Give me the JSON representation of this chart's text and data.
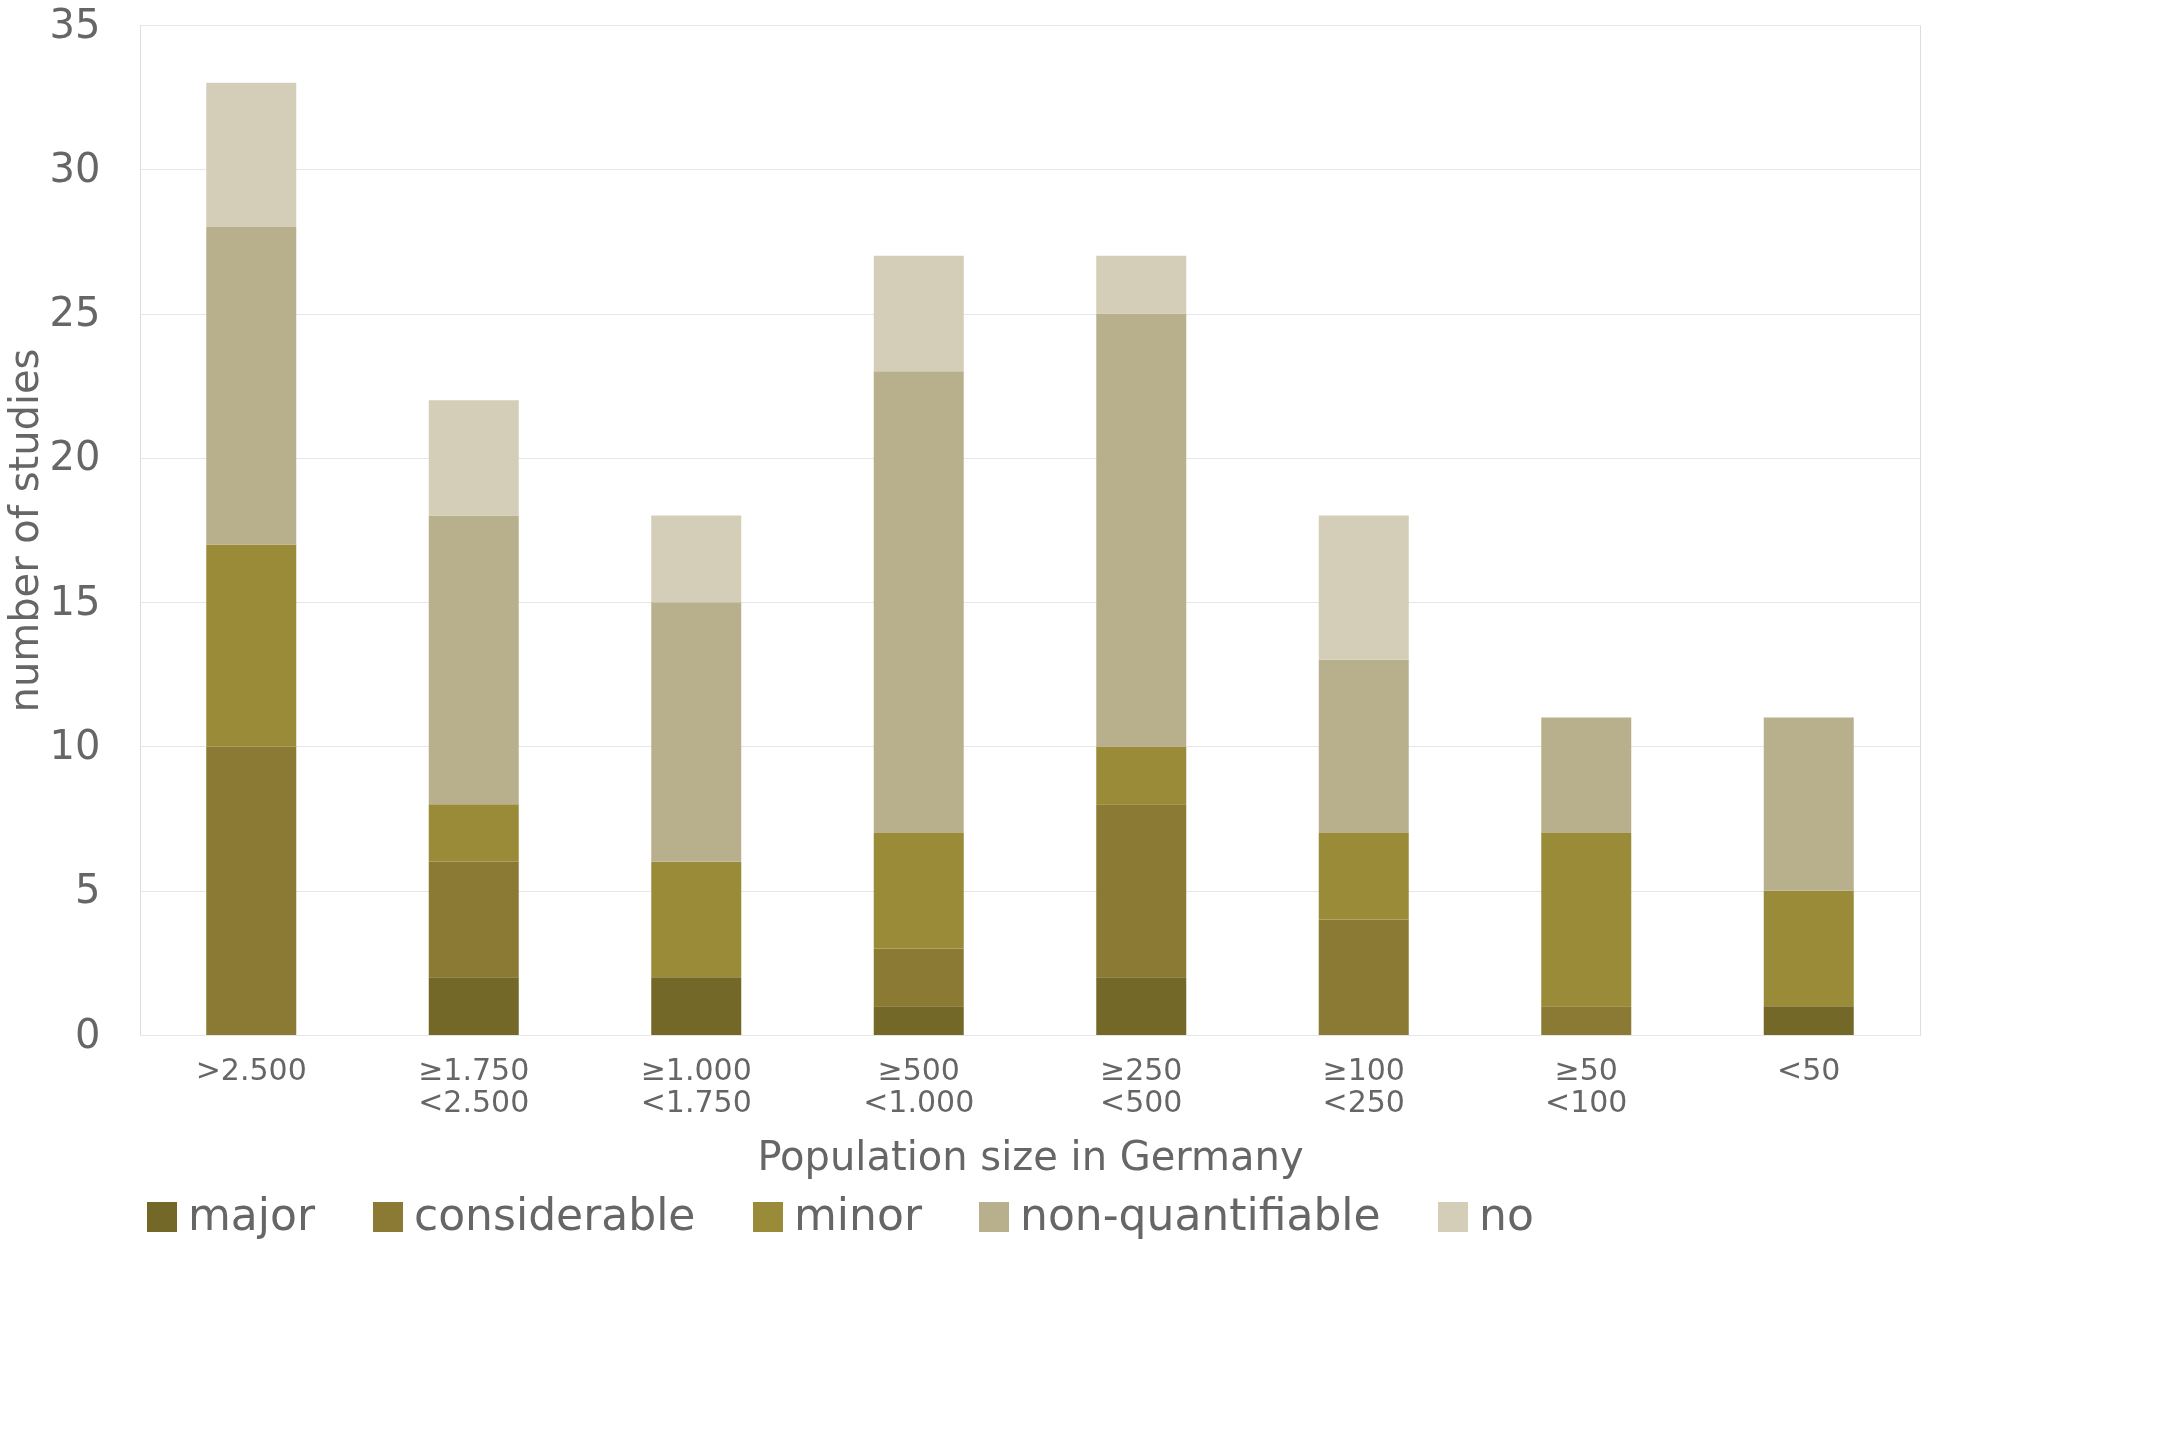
{
  "chart_data": {
    "type": "bar",
    "stacked": true,
    "xlabel": "Population size in Germany",
    "ylabel": "number of studies",
    "categories": [
      ">2.500",
      "≥1.750 <2.500",
      "≥1.000 <1.750",
      "≥500 <1.000",
      "≥250 <500",
      "≥100 <250",
      "≥50 <100",
      "<50"
    ],
    "series": [
      {
        "name": "major",
        "color": "#746828",
        "values": [
          0,
          2,
          2,
          1,
          2,
          0,
          0,
          1
        ]
      },
      {
        "name": "considerable",
        "color": "#8a7a33",
        "values": [
          10,
          4,
          0,
          2,
          6,
          4,
          1,
          0
        ]
      },
      {
        "name": "minor",
        "color": "#9a8b38",
        "values": [
          7,
          2,
          4,
          4,
          2,
          3,
          6,
          4
        ]
      },
      {
        "name": "non-quantifiable",
        "color": "#b8b08c",
        "values": [
          11,
          10,
          9,
          16,
          15,
          6,
          4,
          6
        ]
      },
      {
        "name": "no",
        "color": "#d4cdb8",
        "values": [
          5,
          4,
          3,
          4,
          2,
          5,
          0,
          0
        ]
      }
    ],
    "ylim": [
      0,
      35
    ],
    "yticks": [
      0,
      5,
      10,
      15,
      20,
      25,
      30,
      35
    ],
    "grid": "y",
    "legend": "bottom"
  }
}
